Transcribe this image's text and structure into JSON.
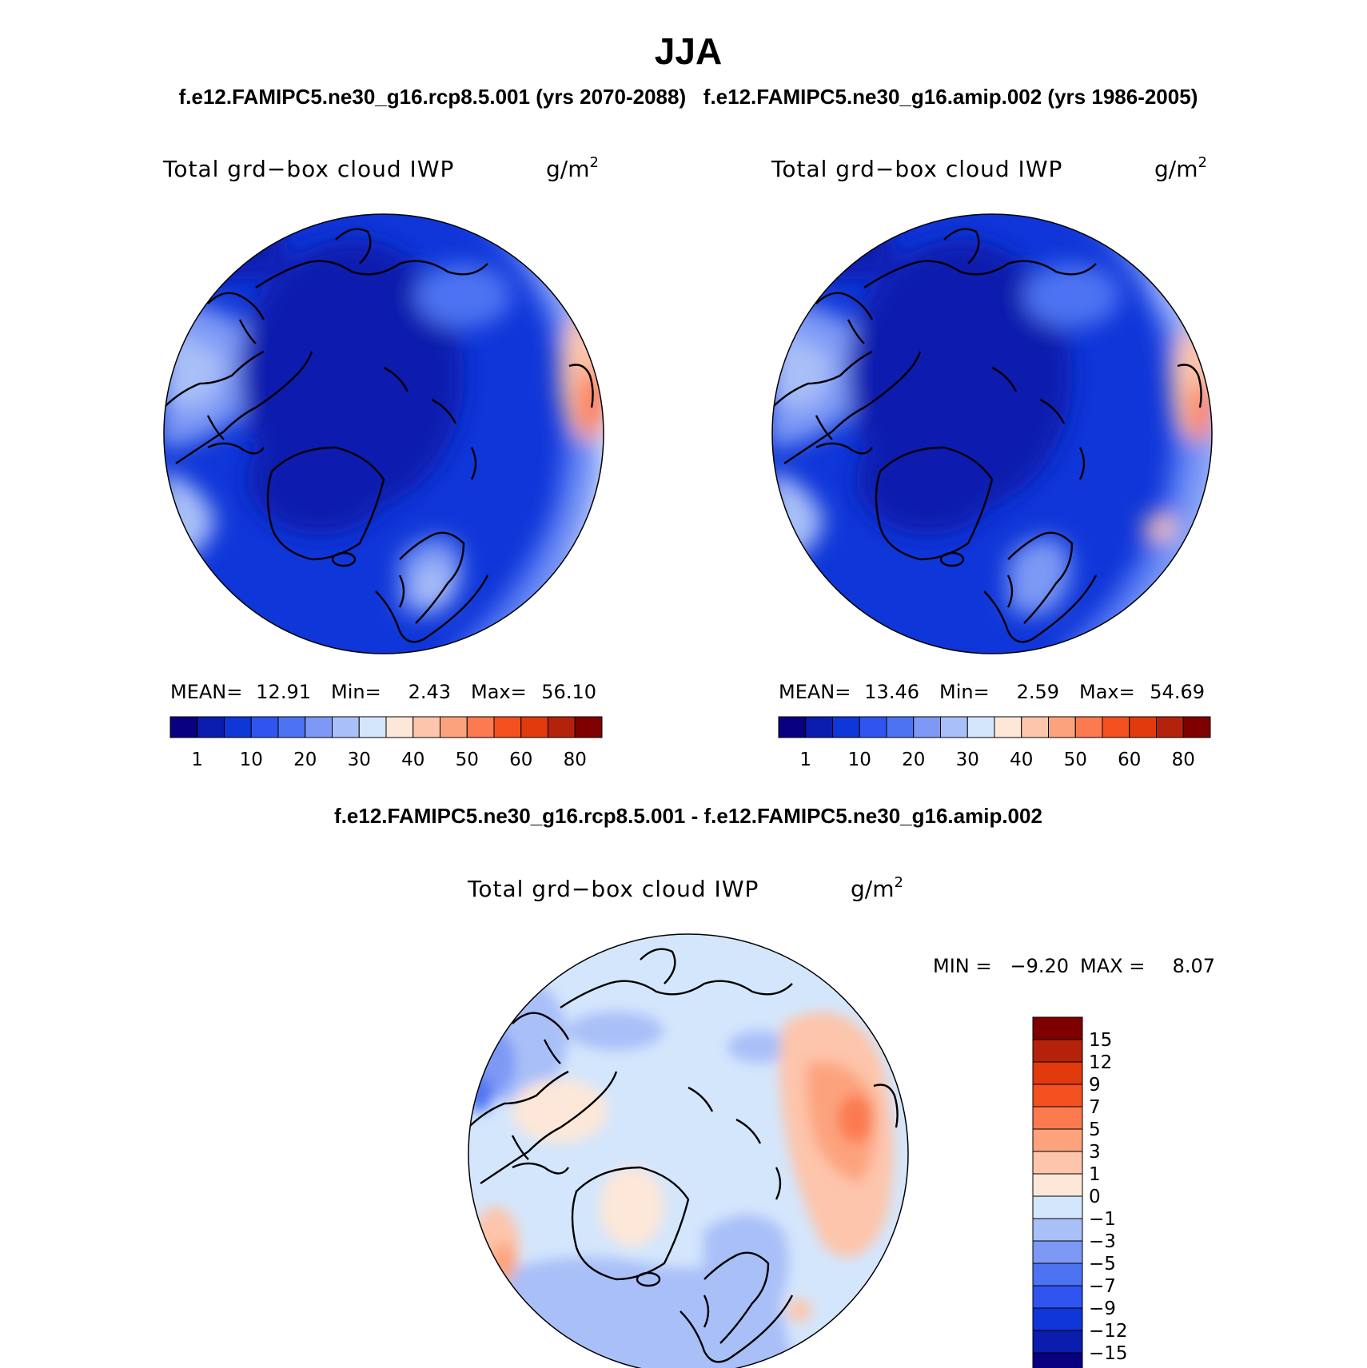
{
  "figure": {
    "title": "JJA",
    "subtitle": "f.e12.FAMIPC5.ne30_g16.rcp8.5.001 (yrs 2070-2088)   f.e12.FAMIPC5.ne30_g16.amip.002 (yrs 1986-2005)",
    "diff_title": "f.e12.FAMIPC5.ne30_g16.rcp8.5.001 - f.e12.FAMIPC5.ne30_g16.amip.002"
  },
  "colors": {
    "main_palette": [
      "#08007e",
      "#0a1dae",
      "#0f36d8",
      "#2f54ef",
      "#4d73f2",
      "#7d99f5",
      "#a9bff8",
      "#d4e6fc",
      "#fde7d8",
      "#fdc5ab",
      "#fca37e",
      "#fb7a4f",
      "#f5501f",
      "#e03a0d",
      "#b5220b",
      "#7e0000"
    ],
    "diff_palette": [
      "#08007e",
      "#0a1dae",
      "#0f36d8",
      "#2f54ef",
      "#4d73f2",
      "#7d99f5",
      "#a9bff8",
      "#d4e6fc",
      "#fde7d8",
      "#fdc5ab",
      "#fca37e",
      "#fb7a4f",
      "#f5501f",
      "#e03a0d",
      "#b5220b",
      "#7e0000"
    ],
    "land_outline": "#000000"
  },
  "chart_data": [
    {
      "type": "heatmap",
      "projection": "north polar stereographic",
      "case": "f.e12.FAMIPC5.ne30_g16.rcp8.5.001 (yrs 2070-2088)",
      "field_label": "Total grd−box cloud IWP",
      "units_main": "g/m",
      "units_exp": "2",
      "stats": {
        "mean_label": "MEAN=",
        "mean": "12.91",
        "min_label": "Min=",
        "min": "2.43",
        "max_label": "Max=",
        "max": "56.10"
      },
      "colorbar": {
        "orientation": "horizontal",
        "tick_labels": [
          "1",
          "10",
          "20",
          "30",
          "40",
          "50",
          "60",
          "80"
        ]
      }
    },
    {
      "type": "heatmap",
      "projection": "north polar stereographic",
      "case": "f.e12.FAMIPC5.ne30_g16.amip.002 (yrs 1986-2005)",
      "field_label": "Total grd−box cloud IWP",
      "units_main": "g/m",
      "units_exp": "2",
      "stats": {
        "mean_label": "MEAN=",
        "mean": "13.46",
        "min_label": "Min=",
        "min": "2.59",
        "max_label": "Max=",
        "max": "54.69"
      },
      "colorbar": {
        "orientation": "horizontal",
        "tick_labels": [
          "1",
          "10",
          "20",
          "30",
          "40",
          "50",
          "60",
          "80"
        ]
      }
    },
    {
      "type": "heatmap",
      "projection": "north polar stereographic",
      "case": "difference",
      "field_label": "Total grd−box cloud IWP",
      "units_main": "g/m",
      "units_exp": "2",
      "stats": {
        "min_label": "MIN =",
        "min": "−9.20",
        "max_label": "MAX =",
        "max": "8.07"
      },
      "colorbar": {
        "orientation": "vertical",
        "tick_labels": [
          "15",
          "12",
          "9",
          "7",
          "5",
          "3",
          "1",
          "0",
          "−1",
          "−3",
          "−5",
          "−7",
          "−9",
          "−12",
          "−15"
        ]
      }
    }
  ]
}
